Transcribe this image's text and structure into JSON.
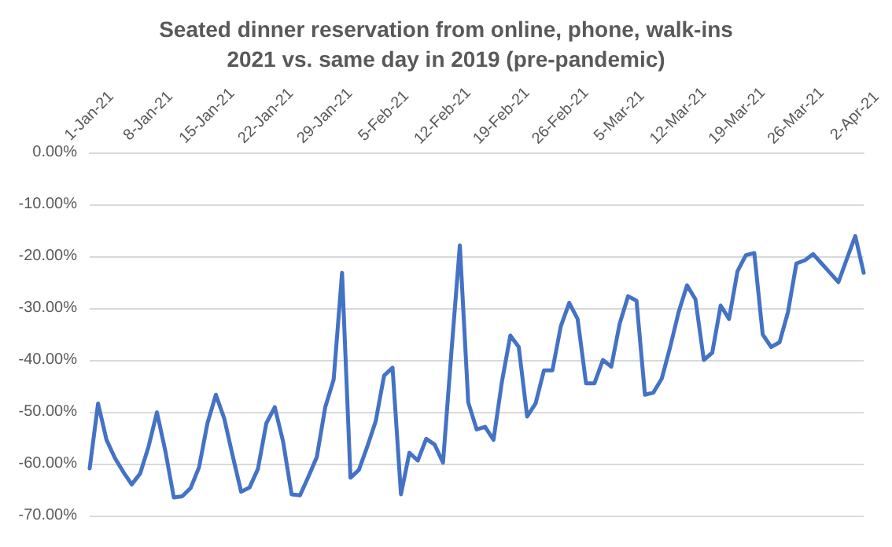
{
  "chart_data": {
    "type": "line",
    "title": "Seated dinner reservation from online, phone, walk-ins\n2021 vs. same day in 2019 (pre-pandemic)",
    "x": [
      "2021-01-01",
      "2021-01-02",
      "2021-01-03",
      "2021-01-04",
      "2021-01-05",
      "2021-01-06",
      "2021-01-07",
      "2021-01-08",
      "2021-01-09",
      "2021-01-10",
      "2021-01-11",
      "2021-01-12",
      "2021-01-13",
      "2021-01-14",
      "2021-01-15",
      "2021-01-16",
      "2021-01-17",
      "2021-01-18",
      "2021-01-19",
      "2021-01-20",
      "2021-01-21",
      "2021-01-22",
      "2021-01-23",
      "2021-01-24",
      "2021-01-25",
      "2021-01-26",
      "2021-01-27",
      "2021-01-28",
      "2021-01-29",
      "2021-01-30",
      "2021-01-31",
      "2021-02-01",
      "2021-02-02",
      "2021-02-03",
      "2021-02-04",
      "2021-02-05",
      "2021-02-06",
      "2021-02-07",
      "2021-02-08",
      "2021-02-09",
      "2021-02-10",
      "2021-02-11",
      "2021-02-12",
      "2021-02-13",
      "2021-02-14",
      "2021-02-15",
      "2021-02-16",
      "2021-02-17",
      "2021-02-18",
      "2021-02-19",
      "2021-02-20",
      "2021-02-21",
      "2021-02-22",
      "2021-02-23",
      "2021-02-24",
      "2021-02-25",
      "2021-02-26",
      "2021-02-27",
      "2021-02-28",
      "2021-03-01",
      "2021-03-02",
      "2021-03-03",
      "2021-03-04",
      "2021-03-05",
      "2021-03-06",
      "2021-03-07",
      "2021-03-08",
      "2021-03-09",
      "2021-03-10",
      "2021-03-11",
      "2021-03-12",
      "2021-03-13",
      "2021-03-14",
      "2021-03-15",
      "2021-03-16",
      "2021-03-17",
      "2021-03-18",
      "2021-03-19",
      "2021-03-20",
      "2021-03-21",
      "2021-03-22",
      "2021-03-23",
      "2021-03-24",
      "2021-03-25",
      "2021-03-26",
      "2021-03-27",
      "2021-03-28",
      "2021-03-29",
      "2021-03-30",
      "2021-03-31",
      "2021-04-01",
      "2021-04-02",
      "2021-04-03"
    ],
    "series": [
      {
        "color": "#4472c4",
        "values": [
          -60.9,
          -48.4,
          -55.4,
          -58.9,
          -61.6,
          -64,
          -61.9,
          -56.7,
          -50.1,
          -57.6,
          -66.5,
          -66.3,
          -64.7,
          -60.7,
          -52.2,
          -46.7,
          -51.3,
          -58.5,
          -65.4,
          -64.6,
          -61,
          -52.2,
          -49.1,
          -55.8,
          -65.9,
          -66.1,
          -62.5,
          -58.7,
          -49.1,
          -43.8,
          -23.2,
          -62.7,
          -61.2,
          -56.7,
          -51.8,
          -43,
          -41.5,
          -65.9,
          -57.9,
          -59.4,
          -55.2,
          -56.3,
          -59.8,
          -38.4,
          -17.9,
          -48.2,
          -53.4,
          -52.9,
          -55.4,
          -44.2,
          -35.3,
          -37.5,
          -50.9,
          -48.4,
          -42,
          -42,
          -33.5,
          -29,
          -32.1,
          -44.5,
          -44.5,
          -40,
          -41.3,
          -33,
          -27.7,
          -28.6,
          -46.7,
          -46.3,
          -43.6,
          -37.5,
          -30.8,
          -25.6,
          -28.3,
          -40,
          -38.6,
          -29.5,
          -32.1,
          -22.9,
          -19.8,
          -19.4,
          -35.1,
          -37.5,
          -36.6,
          -30.8,
          -21.4,
          -20.8,
          -19.6,
          -21.4,
          -23.2,
          -25,
          -20.5,
          -16.1,
          -23.2
        ]
      }
    ],
    "xlim": [
      "2021-01-01",
      "2021-04-03"
    ],
    "xticks": [
      {
        "value": "2021-01-01",
        "label": "1-Jan-21"
      },
      {
        "value": "2021-01-08",
        "label": "8-Jan-21"
      },
      {
        "value": "2021-01-15",
        "label": "15-Jan-21"
      },
      {
        "value": "2021-01-22",
        "label": "22-Jan-21"
      },
      {
        "value": "2021-01-29",
        "label": "29-Jan-21"
      },
      {
        "value": "2021-02-05",
        "label": "5-Feb-21"
      },
      {
        "value": "2021-02-12",
        "label": "12-Feb-21"
      },
      {
        "value": "2021-02-19",
        "label": "19-Feb-21"
      },
      {
        "value": "2021-02-26",
        "label": "26-Feb-21"
      },
      {
        "value": "2021-03-05",
        "label": "5-Mar-21"
      },
      {
        "value": "2021-03-12",
        "label": "12-Mar-21"
      },
      {
        "value": "2021-03-19",
        "label": "19-Mar-21"
      },
      {
        "value": "2021-03-26",
        "label": "26-Mar-21"
      },
      {
        "value": "2021-04-02",
        "label": "2-Apr-21"
      }
    ],
    "ylim": [
      -70,
      0
    ],
    "yticks": [
      {
        "value": 0,
        "label": "0.00%"
      },
      {
        "value": -10,
        "label": "-10.00%"
      },
      {
        "value": -20,
        "label": "-20.00%"
      },
      {
        "value": -30,
        "label": "-30.00%"
      },
      {
        "value": -40,
        "label": "-40.00%"
      },
      {
        "value": -50,
        "label": "-50.00%"
      },
      {
        "value": -60,
        "label": "-60.00%"
      },
      {
        "value": -70,
        "label": "-70.00%"
      }
    ],
    "grid": "y",
    "marker": "none",
    "line_style": "solid"
  }
}
